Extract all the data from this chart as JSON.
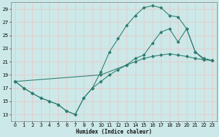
{
  "xlabel": "Humidex (Indice chaleur)",
  "bg_color": "#cce8e8",
  "grid_color": "#e8c8c8",
  "line_color": "#2e7d6e",
  "xlim": [
    -0.5,
    23.5
  ],
  "ylim": [
    12.0,
    30.0
  ],
  "xticks": [
    0,
    1,
    2,
    3,
    4,
    5,
    6,
    7,
    8,
    9,
    10,
    11,
    12,
    13,
    14,
    15,
    16,
    17,
    18,
    19,
    20,
    21,
    22,
    23
  ],
  "yticks": [
    13,
    15,
    17,
    19,
    21,
    23,
    25,
    27,
    29
  ],
  "line1_x": [
    0,
    1,
    2,
    3,
    4,
    5,
    6,
    7,
    8,
    9,
    10,
    11,
    12,
    13,
    14,
    15,
    16,
    17,
    18,
    19,
    20,
    21,
    22,
    23
  ],
  "line1_y": [
    18.0,
    17.0,
    16.2,
    15.5,
    15.0,
    14.5,
    13.5,
    13.0,
    15.5,
    17.0,
    18.0,
    19.0,
    19.8,
    20.5,
    21.0,
    21.5,
    21.8,
    22.0,
    22.2,
    22.0,
    21.8,
    21.5,
    21.3,
    21.2
  ],
  "line2_x": [
    0,
    1,
    2,
    3,
    4,
    5,
    6,
    7,
    8,
    9,
    10,
    11,
    12,
    13,
    14,
    15,
    16,
    17,
    18,
    19,
    20,
    21,
    22,
    23
  ],
  "line2_y": [
    18.0,
    17.0,
    16.2,
    15.5,
    15.0,
    14.5,
    13.5,
    13.0,
    15.5,
    17.0,
    19.5,
    22.5,
    24.5,
    26.5,
    28.0,
    29.2,
    29.5,
    29.2,
    28.0,
    27.8,
    26.0,
    22.5,
    21.3,
    21.2
  ],
  "line3_x": [
    0,
    10,
    13,
    14,
    15,
    16,
    17,
    18,
    19,
    20,
    21,
    22,
    23
  ],
  "line3_y": [
    18.0,
    19.0,
    20.5,
    21.5,
    22.0,
    23.8,
    25.5,
    26.0,
    24.0,
    26.0,
    22.5,
    21.5,
    21.2
  ]
}
